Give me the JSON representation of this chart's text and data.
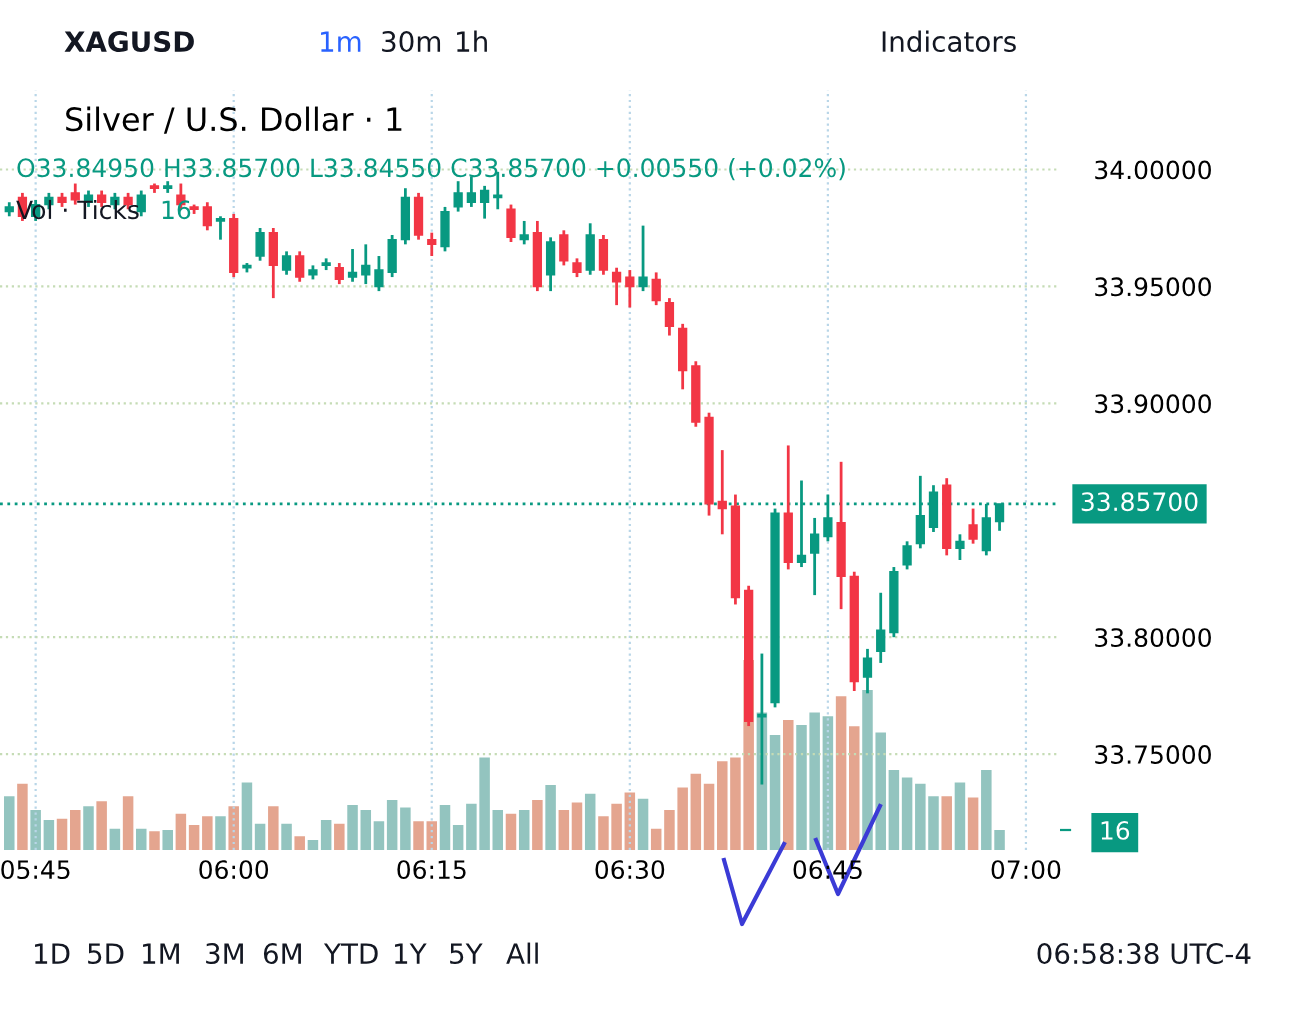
{
  "chart_data": {
    "type": "candlestick",
    "title": "Silver / U.S. Dollar · 1",
    "subtitle": "O33.84950 H33.85700 L33.84550 C33.85700 +0.00550 (+0.02%)",
    "x": [
      5.7167,
      5.7333,
      5.75,
      5.7667,
      5.7833,
      5.8,
      5.8167,
      5.8333,
      5.85,
      5.8667,
      5.8833,
      5.9,
      5.9167,
      5.9333,
      5.95,
      5.9667,
      5.9833,
      6.0,
      6.0167,
      6.0333,
      6.05,
      6.0667,
      6.0833,
      6.1,
      6.1167,
      6.1333,
      6.15,
      6.1667,
      6.1833,
      6.2,
      6.2167,
      6.2333,
      6.25,
      6.2667,
      6.2833,
      6.3,
      6.3167,
      6.3333,
      6.35,
      6.3667,
      6.3833,
      6.4,
      6.4167,
      6.4333,
      6.45,
      6.4667,
      6.4833,
      6.5,
      6.5167,
      6.5333,
      6.55,
      6.5667,
      6.5833,
      6.6,
      6.6167,
      6.6333,
      6.65,
      6.6667,
      6.6833,
      6.7,
      6.7167,
      6.7333,
      6.75,
      6.7667,
      6.7833,
      6.8,
      6.8167,
      6.8333,
      6.85,
      6.8667,
      6.8833,
      6.9,
      6.9167,
      6.9333,
      6.95,
      6.9667
    ],
    "ohlc": [
      [
        33.982,
        33.986,
        33.98,
        33.984
      ],
      [
        33.988,
        33.99,
        33.978,
        33.98
      ],
      [
        33.98,
        33.987,
        33.978,
        33.985
      ],
      [
        33.985,
        33.99,
        33.983,
        33.988
      ],
      [
        33.988,
        33.99,
        33.984,
        33.986
      ],
      [
        33.99,
        33.994,
        33.985,
        33.987
      ],
      [
        33.986,
        33.991,
        33.984,
        33.989
      ],
      [
        33.989,
        33.991,
        33.984,
        33.986
      ],
      [
        33.985,
        33.99,
        33.983,
        33.988
      ],
      [
        33.988,
        33.99,
        33.983,
        33.985
      ],
      [
        33.982,
        33.991,
        33.98,
        33.989
      ],
      [
        33.993,
        33.994,
        33.99,
        33.992
      ],
      [
        33.992,
        33.995,
        33.99,
        33.993
      ],
      [
        33.989,
        33.994,
        33.983,
        33.985
      ],
      [
        33.984,
        33.985,
        33.981,
        33.983
      ],
      [
        33.984,
        33.986,
        33.974,
        33.976
      ],
      [
        33.978,
        33.98,
        33.97,
        33.979
      ],
      [
        33.979,
        33.981,
        33.954,
        33.956
      ],
      [
        33.958,
        33.96,
        33.956,
        33.959
      ],
      [
        33.963,
        33.975,
        33.961,
        33.973
      ],
      [
        33.973,
        33.975,
        33.945,
        33.959
      ],
      [
        33.957,
        33.965,
        33.955,
        33.963
      ],
      [
        33.963,
        33.965,
        33.952,
        33.954
      ],
      [
        33.955,
        33.959,
        33.953,
        33.957
      ],
      [
        33.959,
        33.962,
        33.957,
        33.96
      ],
      [
        33.958,
        33.96,
        33.951,
        33.953
      ],
      [
        33.954,
        33.966,
        33.952,
        33.956
      ],
      [
        33.955,
        33.968,
        33.951,
        33.959
      ],
      [
        33.95,
        33.963,
        33.948,
        33.957
      ],
      [
        33.956,
        33.972,
        33.954,
        33.97
      ],
      [
        33.97,
        33.992,
        33.968,
        33.988
      ],
      [
        33.988,
        33.99,
        33.97,
        33.972
      ],
      [
        33.97,
        33.973,
        33.963,
        33.968
      ],
      [
        33.967,
        33.984,
        33.965,
        33.982
      ],
      [
        33.984,
        33.995,
        33.982,
        33.99
      ],
      [
        33.986,
        33.997,
        33.984,
        33.99
      ],
      [
        33.986,
        33.993,
        33.979,
        33.991
      ],
      [
        33.988,
        33.999,
        33.983,
        33.989
      ],
      [
        33.983,
        33.985,
        33.969,
        33.971
      ],
      [
        33.97,
        33.978,
        33.968,
        33.972
      ],
      [
        33.973,
        33.978,
        33.948,
        33.95
      ],
      [
        33.955,
        33.971,
        33.948,
        33.969
      ],
      [
        33.972,
        33.974,
        33.959,
        33.961
      ],
      [
        33.96,
        33.962,
        33.954,
        33.956
      ],
      [
        33.957,
        33.977,
        33.955,
        33.972
      ],
      [
        33.97,
        33.972,
        33.955,
        33.957
      ],
      [
        33.956,
        33.958,
        33.942,
        33.952
      ],
      [
        33.954,
        33.957,
        33.941,
        33.95
      ],
      [
        33.95,
        33.976,
        33.948,
        33.954
      ],
      [
        33.953,
        33.956,
        33.942,
        33.944
      ],
      [
        33.943,
        33.945,
        33.929,
        33.933
      ],
      [
        33.932,
        33.934,
        33.906,
        33.914
      ],
      [
        33.916,
        33.918,
        33.89,
        33.892
      ],
      [
        33.894,
        33.896,
        33.852,
        33.857
      ],
      [
        33.858,
        33.88,
        33.844,
        33.855
      ],
      [
        33.856,
        33.861,
        33.814,
        33.817
      ],
      [
        33.82,
        33.822,
        33.762,
        33.764
      ],
      [
        33.766,
        33.793,
        33.737,
        33.767
      ],
      [
        33.772,
        33.855,
        33.77,
        33.853
      ],
      [
        33.853,
        33.882,
        33.829,
        33.832
      ],
      [
        33.832,
        33.867,
        33.83,
        33.835
      ],
      [
        33.836,
        33.851,
        33.818,
        33.844
      ],
      [
        33.843,
        33.861,
        33.841,
        33.851
      ],
      [
        33.849,
        33.875,
        33.812,
        33.826
      ],
      [
        33.826,
        33.828,
        33.777,
        33.781
      ],
      [
        33.783,
        33.795,
        33.776,
        33.791
      ],
      [
        33.794,
        33.819,
        33.789,
        33.803
      ],
      [
        33.802,
        33.83,
        33.8,
        33.828
      ],
      [
        33.831,
        33.841,
        33.829,
        33.839
      ],
      [
        33.84,
        33.869,
        33.838,
        33.852
      ],
      [
        33.847,
        33.865,
        33.845,
        33.862
      ],
      [
        33.865,
        33.868,
        33.835,
        33.838
      ],
      [
        33.838,
        33.844,
        33.833,
        33.841
      ],
      [
        33.848,
        33.855,
        33.84,
        33.842
      ],
      [
        33.837,
        33.857,
        33.835,
        33.851
      ],
      [
        33.8495,
        33.857,
        33.8455,
        33.857
      ]
    ],
    "series": [
      {
        "type": "bar",
        "axis": "y2",
        "values": [
          43,
          53,
          32,
          24,
          25,
          32,
          35,
          39,
          17,
          43,
          17,
          15,
          16,
          29,
          20,
          27,
          27,
          35,
          54,
          21,
          35,
          21,
          11,
          8,
          24,
          21,
          36,
          32,
          23,
          40,
          34,
          23,
          23,
          36,
          20,
          37,
          74,
          32,
          29,
          32,
          40,
          52,
          32,
          38,
          45,
          27,
          37,
          46,
          41,
          17,
          32,
          50,
          61,
          53,
          71,
          74,
          152,
          110,
          92,
          104,
          100,
          110,
          107,
          123,
          99,
          128,
          94,
          64,
          58,
          53,
          43,
          43,
          54,
          42,
          64,
          16
        ],
        "colors": [
          "#93c4bf",
          "#e4a58f",
          "#93c4bf",
          "#93c4bf",
          "#e4a58f",
          "#e4a58f",
          "#93c4bf",
          "#e4a58f",
          "#93c4bf",
          "#e4a58f",
          "#93c4bf",
          "#e4a58f",
          "#93c4bf",
          "#e4a58f",
          "#e4a58f",
          "#e4a58f",
          "#93c4bf",
          "#e4a58f",
          "#93c4bf",
          "#93c4bf",
          "#e4a58f",
          "#93c4bf",
          "#e4a58f",
          "#93c4bf",
          "#93c4bf",
          "#e4a58f",
          "#93c4bf",
          "#93c4bf",
          "#93c4bf",
          "#93c4bf",
          "#93c4bf",
          "#e4a58f",
          "#e4a58f",
          "#93c4bf",
          "#93c4bf",
          "#93c4bf",
          "#93c4bf",
          "#93c4bf",
          "#e4a58f",
          "#93c4bf",
          "#e4a58f",
          "#93c4bf",
          "#e4a58f",
          "#e4a58f",
          "#93c4bf",
          "#e4a58f",
          "#e4a58f",
          "#e4a58f",
          "#93c4bf",
          "#e4a58f",
          "#e4a58f",
          "#e4a58f",
          "#e4a58f",
          "#e4a58f",
          "#e4a58f",
          "#e4a58f",
          "#e4a58f",
          "#93c4bf",
          "#93c4bf",
          "#e4a58f",
          "#93c4bf",
          "#93c4bf",
          "#93c4bf",
          "#e4a58f",
          "#e4a58f",
          "#93c4bf",
          "#93c4bf",
          "#93c4bf",
          "#93c4bf",
          "#93c4bf",
          "#93c4bf",
          "#e4a58f",
          "#93c4bf",
          "#e4a58f",
          "#93c4bf",
          "#93c4bf"
        ]
      }
    ],
    "xlim": [
      5.705,
      7.043
    ],
    "xticks": [
      {
        "value": 5.75,
        "label": "05:45"
      },
      {
        "value": 6.0,
        "label": "06:00"
      },
      {
        "value": 6.25,
        "label": "06:15"
      },
      {
        "value": 6.5,
        "label": "06:30"
      },
      {
        "value": 6.75,
        "label": "06:45"
      },
      {
        "value": 7.0,
        "label": "07:00"
      }
    ],
    "ylim": [
      33.709,
      34.034
    ],
    "yticks": [
      {
        "value": 33.75,
        "label": "33.75000"
      },
      {
        "value": 33.8,
        "label": "33.80000"
      },
      {
        "value": 33.9,
        "label": "33.90000"
      },
      {
        "value": 33.95,
        "label": "33.95000"
      },
      {
        "value": 34.0,
        "label": "34.00000"
      }
    ],
    "y2lim": [
      0,
      608
    ],
    "y2ticks": [
      {
        "value": 16,
        "label": "16"
      }
    ],
    "ref_lines": [
      {
        "axis": "y",
        "value": 33.857,
        "label": "33.85700",
        "color": "#089981",
        "line_style": "dotted"
      }
    ],
    "grid": true,
    "annotations": [
      "XAGUSD",
      "1m",
      "30m",
      "1h",
      "Indicators",
      "Vol · Ticks",
      "16",
      "1D",
      "5D",
      "1M",
      "3M",
      "6M",
      "YTD",
      "1Y",
      "5Y",
      "All",
      "06:58:38 UTC-4"
    ]
  }
}
